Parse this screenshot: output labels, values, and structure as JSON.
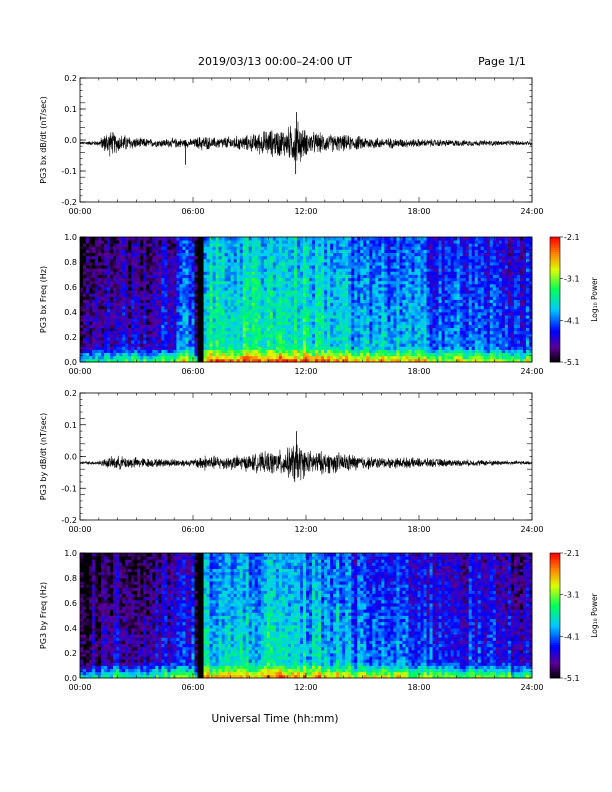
{
  "header": {
    "title": "2019/03/13  00:00–24:00 UT",
    "page": "Page 1/1"
  },
  "x_axis_title": "Universal Time (hh:mm)",
  "chart_data": [
    {
      "type": "line",
      "ylabel": "PG3 bx dB/dt (nT/sec)",
      "xlim": [
        0,
        24
      ],
      "ylim": [
        -0.2,
        0.2
      ],
      "x_tick_labels": [
        "00:00",
        "06:00",
        "12:00",
        "18:00",
        "24:00"
      ],
      "y_tick_labels": [
        "0.2",
        "0.1",
        "0.0",
        "-0.1",
        "-0.2"
      ],
      "y_tick_values": [
        0.2,
        0.1,
        0.0,
        -0.1,
        -0.2
      ],
      "baseline": -0.01,
      "envelope_hours": [
        0,
        1,
        1.5,
        2,
        2.5,
        3,
        4,
        5,
        6,
        6.5,
        7,
        8,
        9,
        10,
        11,
        11.5,
        12,
        13,
        14,
        15,
        16,
        18,
        20,
        22,
        24
      ],
      "envelope_amplitude": [
        0.005,
        0.01,
        0.05,
        0.035,
        0.03,
        0.02,
        0.015,
        0.018,
        0.015,
        0.03,
        0.02,
        0.025,
        0.03,
        0.05,
        0.055,
        0.09,
        0.045,
        0.035,
        0.03,
        0.025,
        0.02,
        0.015,
        0.012,
        0.01,
        0.008
      ],
      "spikes": [
        {
          "x": 5.6,
          "y": -0.08
        },
        {
          "x": 11.5,
          "y": 0.09
        },
        {
          "x": 11.45,
          "y": -0.11
        }
      ]
    },
    {
      "type": "heatmap",
      "ylabel": "PG3 bx Freq (Hz)",
      "xlim": [
        0,
        24
      ],
      "ylim": [
        0.0,
        1.0
      ],
      "x_tick_labels": [
        "00:00",
        "06:00",
        "12:00",
        "18:00",
        "24:00"
      ],
      "y_tick_labels": [
        "1.0",
        "0.8",
        "0.6",
        "0.4",
        "0.2",
        "0.0"
      ],
      "y_tick_values": [
        1.0,
        0.8,
        0.6,
        0.4,
        0.2,
        0.0
      ],
      "colorbar": {
        "label": "Log₁₀ Power",
        "range": [
          -5.1,
          -2.1
        ],
        "tick_labels": [
          "-2.1",
          "-3.1",
          "-4.1",
          "-5.1"
        ],
        "tick_values": [
          -2.1,
          -3.1,
          -4.1,
          -5.1
        ]
      },
      "data_gap_hours": [
        6.3,
        6.6
      ],
      "level_profile_hours": [
        0,
        1,
        2,
        3,
        4,
        5,
        5.5,
        6,
        6.3,
        6.6,
        8,
        10,
        12,
        14,
        14.5,
        16,
        18,
        20,
        22,
        24
      ],
      "level_profile_power": [
        -4.7,
        -4.6,
        -4.4,
        -4.5,
        -4.4,
        -4.3,
        -4.0,
        -4.0,
        -5.1,
        -3.5,
        -3.5,
        -3.4,
        -3.5,
        -3.6,
        -3.9,
        -3.8,
        -3.9,
        -4.0,
        -4.1,
        -4.2
      ]
    },
    {
      "type": "line",
      "ylabel": "PG3 by dB/dt (nT/sec)",
      "xlim": [
        0,
        24
      ],
      "ylim": [
        -0.2,
        0.2
      ],
      "x_tick_labels": [
        "00:00",
        "06:00",
        "12:00",
        "18:00",
        "24:00"
      ],
      "y_tick_labels": [
        "0.2",
        "0.1",
        "0.0",
        "-0.1",
        "-0.2"
      ],
      "y_tick_values": [
        0.2,
        0.1,
        0.0,
        -0.1,
        -0.2
      ],
      "baseline": -0.02,
      "envelope_hours": [
        0,
        1,
        1.5,
        2,
        3,
        4,
        5,
        6,
        6.5,
        7,
        8,
        9,
        10,
        11,
        11.5,
        12,
        13,
        14,
        15,
        16,
        18,
        20,
        22,
        24
      ],
      "envelope_amplitude": [
        0.005,
        0.008,
        0.02,
        0.025,
        0.02,
        0.015,
        0.015,
        0.012,
        0.03,
        0.025,
        0.025,
        0.03,
        0.04,
        0.05,
        0.08,
        0.045,
        0.04,
        0.035,
        0.025,
        0.02,
        0.018,
        0.012,
        0.01,
        0.006
      ],
      "spikes": [
        {
          "x": 11.5,
          "y": 0.08
        },
        {
          "x": 11.4,
          "y": -0.08
        }
      ]
    },
    {
      "type": "heatmap",
      "ylabel": "PG3 by Freq (Hz)",
      "xlim": [
        0,
        24
      ],
      "ylim": [
        0.0,
        1.0
      ],
      "x_tick_labels": [
        "00:00",
        "06:00",
        "12:00",
        "18:00",
        "24:00"
      ],
      "y_tick_labels": [
        "1.0",
        "0.8",
        "0.6",
        "0.4",
        "0.2",
        "0.0"
      ],
      "y_tick_values": [
        1.0,
        0.8,
        0.6,
        0.4,
        0.2,
        0.0
      ],
      "colorbar": {
        "label": "Log₁₀ Power",
        "range": [
          -5.1,
          -2.1
        ],
        "tick_labels": [
          "-2.1",
          "-3.1",
          "-4.1",
          "-5.1"
        ],
        "tick_values": [
          -2.1,
          -3.1,
          -4.1,
          -5.1
        ]
      },
      "data_gap_hours": [
        6.3,
        6.6
      ],
      "level_profile_hours": [
        0,
        1,
        2,
        3,
        4,
        5,
        5.5,
        6,
        6.3,
        6.6,
        8,
        10,
        12,
        14,
        14.5,
        16,
        18,
        20,
        22,
        24
      ],
      "level_profile_power": [
        -4.7,
        -4.6,
        -4.5,
        -4.6,
        -4.5,
        -4.4,
        -4.2,
        -4.2,
        -5.1,
        -3.7,
        -3.7,
        -3.6,
        -3.7,
        -3.8,
        -4.0,
        -4.0,
        -4.1,
        -4.2,
        -4.3,
        -4.4
      ]
    }
  ]
}
